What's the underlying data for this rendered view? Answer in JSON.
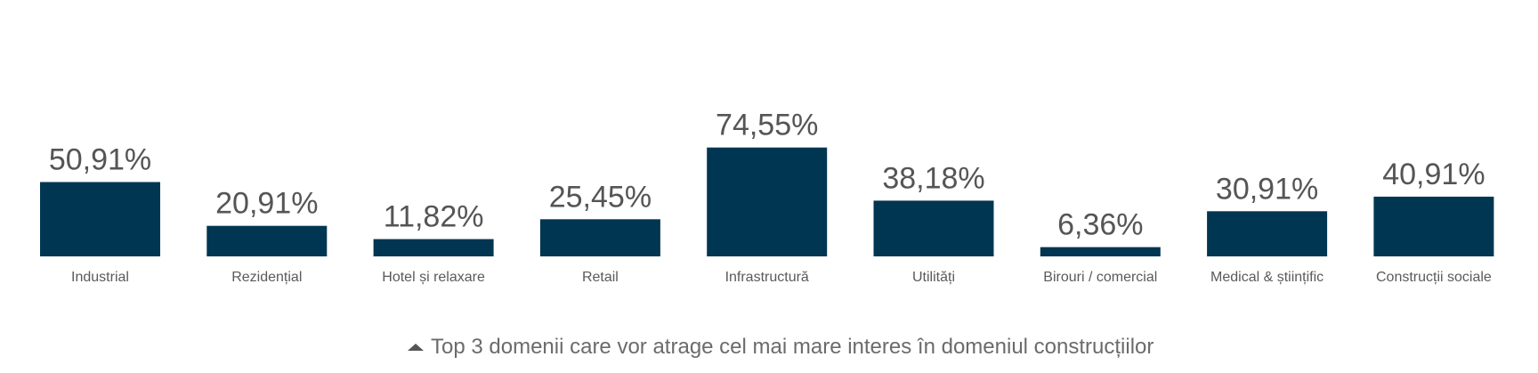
{
  "chart_data": {
    "type": "bar",
    "categories": [
      "Industrial",
      "Rezidențial",
      "Hotel și relaxare",
      "Retail",
      "Infrastructură",
      "Utilități",
      "Birouri / comercial",
      "Medical & științific",
      "Construcții sociale"
    ],
    "values": [
      50.91,
      20.91,
      11.82,
      25.45,
      74.55,
      38.18,
      6.36,
      30.91,
      40.91
    ],
    "value_labels": [
      "50,91%",
      "20,91%",
      "11,82%",
      "25,45%",
      "74,55%",
      "38,18%",
      "6,36%",
      "30,91%",
      "40,91%"
    ],
    "ylim": [
      0,
      100
    ],
    "grid": false,
    "legend": "none",
    "bar_color": "#003651"
  },
  "caption": {
    "icon": "triangle-up-icon",
    "text": "Top 3 domenii care vor atrage cel mai mare interes în domeniul construcțiilor"
  }
}
